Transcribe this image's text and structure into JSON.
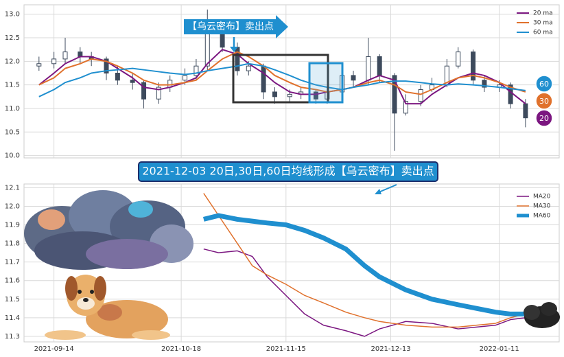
{
  "chart_data": [
    {
      "type": "candlestick",
      "x": [
        "2021-09-10",
        "2021-09-14",
        "2021-09-17",
        "2021-09-21",
        "2021-09-24",
        "2021-09-28",
        "2021-10-01",
        "2021-10-05",
        "2021-10-08",
        "2021-10-12",
        "2021-10-15",
        "2021-10-19",
        "2021-10-22",
        "2021-10-25",
        "2021-10-29",
        "2021-11-02",
        "2021-11-05",
        "2021-11-09",
        "2021-11-12",
        "2021-11-16",
        "2021-11-19",
        "2021-11-23",
        "2021-11-26",
        "2021-11-30",
        "2021-12-03",
        "2021-12-07",
        "2021-12-10",
        "2021-12-14",
        "2021-12-17",
        "2021-12-21",
        "2021-12-24",
        "2021-12-28",
        "2021-12-31",
        "2022-01-04",
        "2022-01-07",
        "2022-01-11",
        "2022-01-14",
        "2022-01-18"
      ],
      "open": [
        11.9,
        11.95,
        12.05,
        12.2,
        12.1,
        12.05,
        11.75,
        11.6,
        11.55,
        11.2,
        11.45,
        11.6,
        11.7,
        11.9,
        12.75,
        12.3,
        11.8,
        11.9,
        11.35,
        11.25,
        11.3,
        11.35,
        11.2,
        11.35,
        11.7,
        11.6,
        12.1,
        11.7,
        10.9,
        11.15,
        11.4,
        11.5,
        11.9,
        12.2,
        11.6,
        11.45,
        11.5,
        11.1
      ],
      "high": [
        12.1,
        12.2,
        12.5,
        12.3,
        12.2,
        12.1,
        11.9,
        11.75,
        11.6,
        11.55,
        11.7,
        11.85,
        12.05,
        13.1,
        12.85,
        12.4,
        12.0,
        11.95,
        11.45,
        11.4,
        11.45,
        11.4,
        11.45,
        11.95,
        11.8,
        12.5,
        12.15,
        11.75,
        11.3,
        11.5,
        11.65,
        12.05,
        12.3,
        12.25,
        11.7,
        11.6,
        11.55,
        11.2
      ],
      "low": [
        11.8,
        11.85,
        11.95,
        11.95,
        11.9,
        11.6,
        11.5,
        11.4,
        11.0,
        11.1,
        11.35,
        11.5,
        11.6,
        11.8,
        12.2,
        11.7,
        11.7,
        11.2,
        11.1,
        11.15,
        11.2,
        11.1,
        11.1,
        11.3,
        11.45,
        11.5,
        11.55,
        10.1,
        10.85,
        11.05,
        11.35,
        11.45,
        11.85,
        11.5,
        11.35,
        11.35,
        11.0,
        10.6
      ],
      "close": [
        11.95,
        12.05,
        12.2,
        12.1,
        12.05,
        11.75,
        11.6,
        11.55,
        11.2,
        11.45,
        11.6,
        11.7,
        11.9,
        12.75,
        12.3,
        11.8,
        11.9,
        11.35,
        11.25,
        11.3,
        11.35,
        11.2,
        11.35,
        11.7,
        11.6,
        12.1,
        11.7,
        10.9,
        11.15,
        11.4,
        11.5,
        11.9,
        12.2,
        11.6,
        11.45,
        11.5,
        11.1,
        10.8
      ],
      "candle_color": "#3d4a5c",
      "series": [
        {
          "name": "20 ma",
          "color": "#7b1680",
          "values": [
            11.5,
            11.75,
            11.95,
            12.1,
            12.1,
            12.0,
            11.85,
            11.65,
            11.45,
            11.4,
            11.45,
            11.55,
            11.65,
            11.95,
            12.25,
            12.15,
            11.95,
            11.75,
            11.55,
            11.35,
            11.3,
            11.3,
            11.35,
            11.4,
            11.45,
            11.6,
            11.7,
            11.6,
            11.1,
            11.1,
            11.3,
            11.5,
            11.65,
            11.75,
            11.7,
            11.55,
            11.35,
            11.1
          ]
        },
        {
          "name": "30 ma",
          "color": "#e0712c",
          "values": [
            11.5,
            11.65,
            11.85,
            11.95,
            12.05,
            12.0,
            11.9,
            11.75,
            11.6,
            11.5,
            11.5,
            11.55,
            11.6,
            11.8,
            12.05,
            12.2,
            12.1,
            11.9,
            11.7,
            11.55,
            11.45,
            11.4,
            11.35,
            11.4,
            11.45,
            11.55,
            11.6,
            11.5,
            11.35,
            11.3,
            11.4,
            11.55,
            11.65,
            11.7,
            11.65,
            11.55,
            11.45,
            11.35
          ]
        },
        {
          "name": "60 ma",
          "color": "#1f8fcf",
          "values": [
            11.25,
            11.4,
            11.55,
            11.65,
            11.75,
            11.8,
            11.82,
            11.85,
            11.82,
            11.78,
            11.75,
            11.72,
            11.75,
            11.8,
            11.85,
            11.9,
            11.95,
            11.9,
            11.82,
            11.7,
            11.6,
            11.5,
            11.45,
            11.4,
            11.45,
            11.5,
            11.55,
            11.58,
            11.58,
            11.55,
            11.52,
            11.5,
            11.52,
            11.5,
            11.48,
            11.45,
            11.42,
            11.38
          ]
        }
      ],
      "xlim": [
        "2021-09-06",
        "2022-01-27"
      ],
      "ylim": [
        9.95,
        13.2
      ],
      "yticks": [
        {
          "value": 10,
          "label": "10.0"
        },
        10.5,
        {
          "value": 11,
          "label": "11.0"
        },
        11.5,
        {
          "value": 12,
          "label": "12.0"
        },
        12.5,
        {
          "value": 13,
          "label": "13.0"
        }
      ],
      "grid": true,
      "legend": "upper right",
      "annotation": "【乌云密布】卖出点",
      "badges": [
        {
          "text": 60,
          "color": "#1f8fcf"
        },
        {
          "text": 30,
          "color": "#e0712c"
        },
        {
          "text": 20,
          "color": "#7b1680"
        }
      ]
    },
    {
      "type": "line",
      "x": [
        "2021-10-24",
        "2021-10-28",
        "2021-11-02",
        "2021-11-06",
        "2021-11-10",
        "2021-11-15",
        "2021-11-20",
        "2021-11-25",
        "2021-12-01",
        "2021-12-06",
        "2021-12-10",
        "2021-12-17",
        "2021-12-24",
        "2021-12-31",
        "2022-01-05",
        "2022-01-10",
        "2022-01-14",
        "2022-01-18"
      ],
      "series": [
        {
          "name": "MA20",
          "color": "#7b1680",
          "width": 1.5,
          "values": [
            11.77,
            11.75,
            11.76,
            11.73,
            11.62,
            11.52,
            11.42,
            11.36,
            11.33,
            11.3,
            11.34,
            11.38,
            11.37,
            11.34,
            11.35,
            11.36,
            11.39,
            11.4
          ]
        },
        {
          "name": "MA30",
          "color": "#e0712c",
          "width": 1.5,
          "values": [
            12.07,
            11.95,
            11.8,
            11.68,
            11.63,
            11.58,
            11.52,
            11.48,
            11.43,
            11.4,
            11.38,
            11.36,
            11.35,
            11.35,
            11.36,
            11.37,
            11.4,
            11.42
          ]
        },
        {
          "name": "MA60",
          "color": "#1f8fcf",
          "width": 7,
          "values": [
            11.93,
            11.95,
            11.93,
            11.92,
            11.91,
            11.9,
            11.87,
            11.83,
            11.77,
            11.68,
            11.62,
            11.55,
            11.5,
            11.47,
            11.45,
            11.43,
            11.42,
            11.42
          ]
        }
      ],
      "xlim": [
        "2021-09-06",
        "2022-01-27"
      ],
      "xticks": [
        "2021-09-14",
        "2021-10-18",
        "2021-11-15",
        "2021-12-13",
        "2022-01-11"
      ],
      "ylim": [
        11.27,
        12.12
      ],
      "yticks": [
        11.3,
        11.4,
        11.5,
        11.6,
        11.7,
        11.8,
        11.9,
        {
          "value": 12,
          "label": "12.0"
        },
        12.1
      ],
      "grid": true,
      "legend": "upper right",
      "annotation": "2021-12-03 20日,30日,60日均线形成【乌云密布】卖出点"
    }
  ]
}
